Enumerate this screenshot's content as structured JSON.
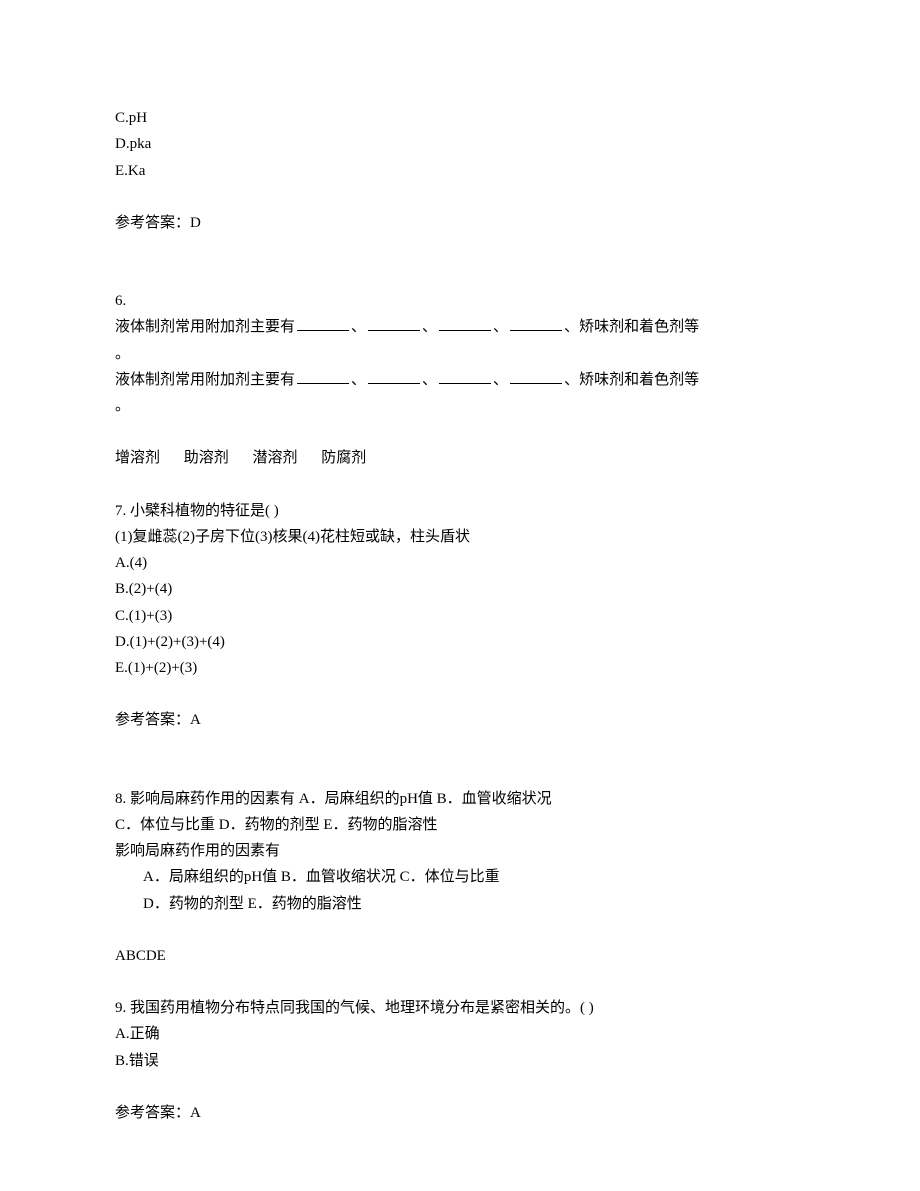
{
  "q5": {
    "optC": "C.pH",
    "optD": "D.pka",
    "optE": "E.Ka",
    "answerLabel": "参考答案：D"
  },
  "q6": {
    "number": "6.",
    "stemPrefix": "液体制剂常用附加剂主要有",
    "sep": "、",
    "stemSuffix1": "、矫味剂和着色剂等",
    "stemSuffix2": "。",
    "ans1": "增溶剂",
    "ans2": "助溶剂",
    "ans3": "潜溶剂",
    "ans4": "防腐剂"
  },
  "q7": {
    "stem": "7. 小檗科植物的特征是(  )",
    "features": "(1)复雌蕊(2)子房下位(3)核果(4)花柱短或缺，柱头盾状",
    "optA": "A.(4)",
    "optB": "B.(2)+(4)",
    "optC": "C.(1)+(3)",
    "optD": "D.(1)+(2)+(3)+(4)",
    "optE": "E.(1)+(2)+(3)",
    "answerLabel": "参考答案：A"
  },
  "q8": {
    "line1": "8. 影响局麻药作用的因素有   A．局麻组织的pH值   B．血管收缩状况 ",
    "line2": "C．体位与比重   D．药物的剂型   E．药物的脂溶性",
    "line3": "影响局麻药作用的因素有",
    "line4": "A．局麻组织的pH值   B．血管收缩状况   C．体位与比重",
    "line5": "D．药物的剂型   E．药物的脂溶性",
    "answer": "ABCDE"
  },
  "q9": {
    "stem": "9. 我国药用植物分布特点同我国的气候、地理环境分布是紧密相关的。(  )",
    "optA": "A.正确",
    "optB": "B.错误",
    "answerLabel": "参考答案：A"
  }
}
